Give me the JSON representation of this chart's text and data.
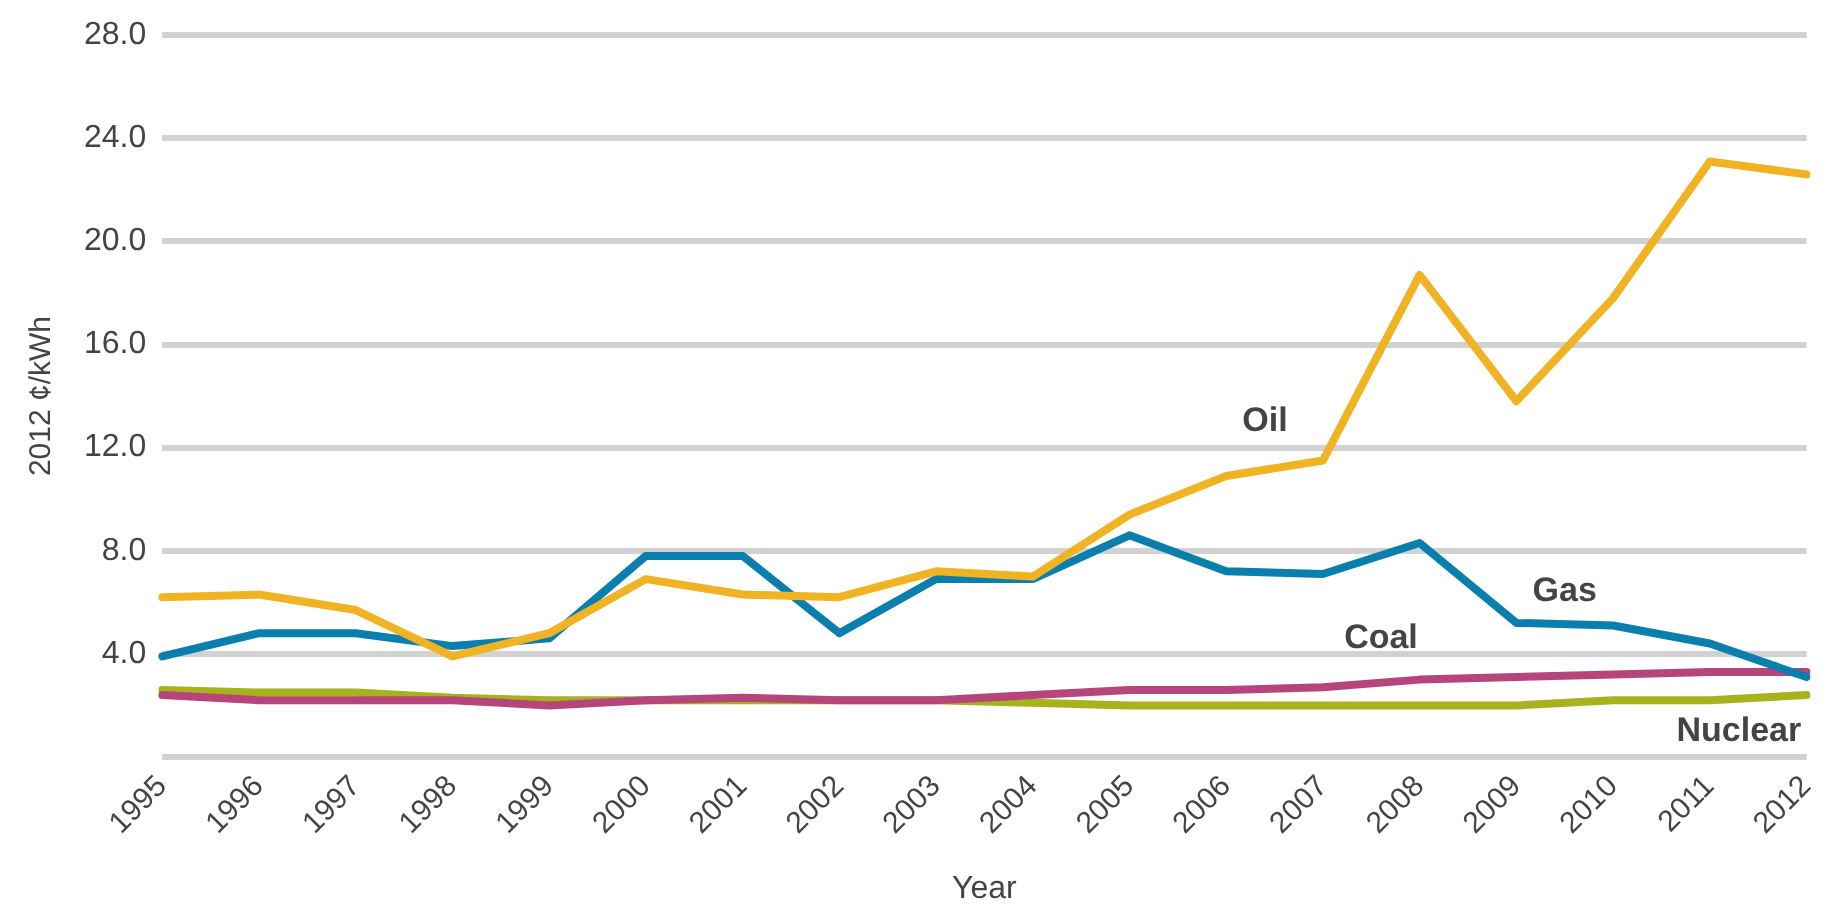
{
  "chart_data": {
    "type": "line",
    "xlabel": "Year",
    "ylabel": "2012 ¢/kWh",
    "categories": [
      "1995",
      "1996",
      "1997",
      "1998",
      "1999",
      "2000",
      "2001",
      "2002",
      "2003",
      "2004",
      "2005",
      "2006",
      "2007",
      "2008",
      "2009",
      "2010",
      "2011",
      "2012"
    ],
    "series": [
      {
        "name": "Oil",
        "color": "#f0b323",
        "values": [
          6.2,
          6.3,
          5.7,
          3.9,
          4.8,
          6.9,
          6.3,
          6.2,
          7.2,
          7.0,
          9.4,
          10.9,
          11.5,
          18.7,
          13.8,
          17.8,
          23.1,
          22.6
        ]
      },
      {
        "name": "Gas",
        "color": "#0a7fae",
        "values": [
          3.9,
          4.8,
          4.8,
          4.3,
          4.6,
          7.8,
          7.8,
          4.8,
          6.9,
          6.9,
          8.6,
          7.2,
          7.1,
          8.3,
          5.2,
          5.1,
          4.4,
          3.1
        ]
      },
      {
        "name": "Coal",
        "color": "#b5457a",
        "values": [
          2.4,
          2.2,
          2.2,
          2.2,
          2.0,
          2.2,
          2.3,
          2.2,
          2.2,
          2.4,
          2.6,
          2.6,
          2.7,
          3.0,
          3.1,
          3.2,
          3.3,
          3.3
        ]
      },
      {
        "name": "Nuclear",
        "color": "#a7b21c",
        "values": [
          2.6,
          2.5,
          2.5,
          2.3,
          2.2,
          2.2,
          2.2,
          2.2,
          2.2,
          2.1,
          2.0,
          2.0,
          2.0,
          2.0,
          2.0,
          2.2,
          2.2,
          2.4
        ]
      }
    ],
    "ylim": [
      0,
      28
    ],
    "yticks": [
      {
        "value": 0,
        "label": null
      },
      {
        "value": 4,
        "label": "4.0"
      },
      {
        "value": 8,
        "label": "8.0"
      },
      {
        "value": 12,
        "label": "12.0"
      },
      {
        "value": 16,
        "label": "16.0"
      },
      {
        "value": 20,
        "label": "20.0"
      },
      {
        "value": 24,
        "label": "24.0"
      },
      {
        "value": 28,
        "label": "28.0"
      }
    ],
    "grid": "y",
    "legend": false,
    "marker": "none",
    "line_style": "solid"
  }
}
